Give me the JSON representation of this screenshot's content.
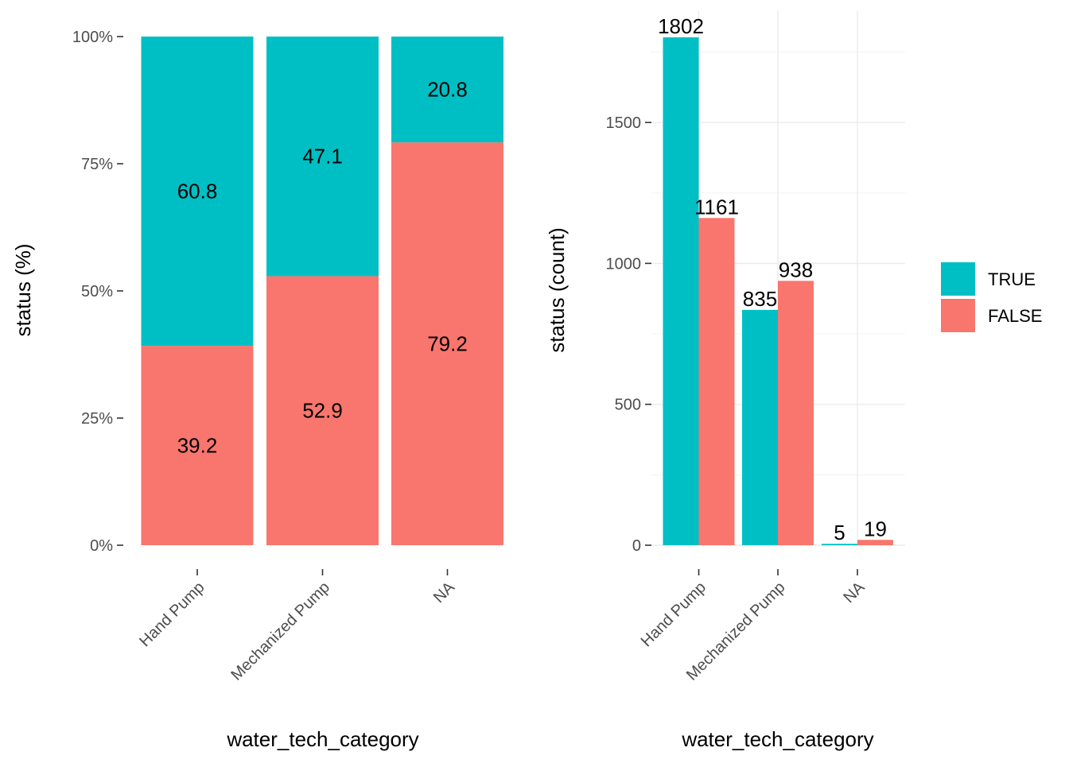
{
  "chart_data": [
    {
      "type": "bar",
      "stacked": true,
      "categories": [
        "Hand Pump",
        "Mechanized Pump",
        "NA"
      ],
      "series": [
        {
          "name": "TRUE",
          "values": [
            60.8,
            47.1,
            20.8
          ]
        },
        {
          "name": "FALSE",
          "values": [
            39.2,
            52.9,
            79.2
          ]
        }
      ],
      "xlabel": "water_tech_category",
      "ylabel": "status  (%)",
      "ylim": [
        0,
        100
      ],
      "yticks": [
        0,
        25,
        50,
        75,
        100
      ],
      "ytick_labels": [
        "0%",
        "25%",
        "50%",
        "75%",
        "100%"
      ],
      "grid": false
    },
    {
      "type": "bar",
      "stacked": false,
      "categories": [
        "Hand Pump",
        "Mechanized Pump",
        "NA"
      ],
      "series": [
        {
          "name": "TRUE",
          "values": [
            1802,
            835,
            5
          ]
        },
        {
          "name": "FALSE",
          "values": [
            1161,
            938,
            19
          ]
        }
      ],
      "xlabel": "water_tech_category",
      "ylabel": "status  (count)",
      "ylim": [
        0,
        1895
      ],
      "yticks": [
        0,
        500,
        1000,
        1500
      ],
      "ytick_labels": [
        "0",
        "500",
        "1000",
        "1500"
      ],
      "grid": true
    }
  ],
  "legend": {
    "position": "right",
    "items": [
      {
        "label": "TRUE",
        "color": "#00BFC4"
      },
      {
        "label": "FALSE",
        "color": "#F8766D"
      }
    ]
  },
  "colors": {
    "TRUE": "#00BFC4",
    "FALSE": "#F8766D"
  }
}
